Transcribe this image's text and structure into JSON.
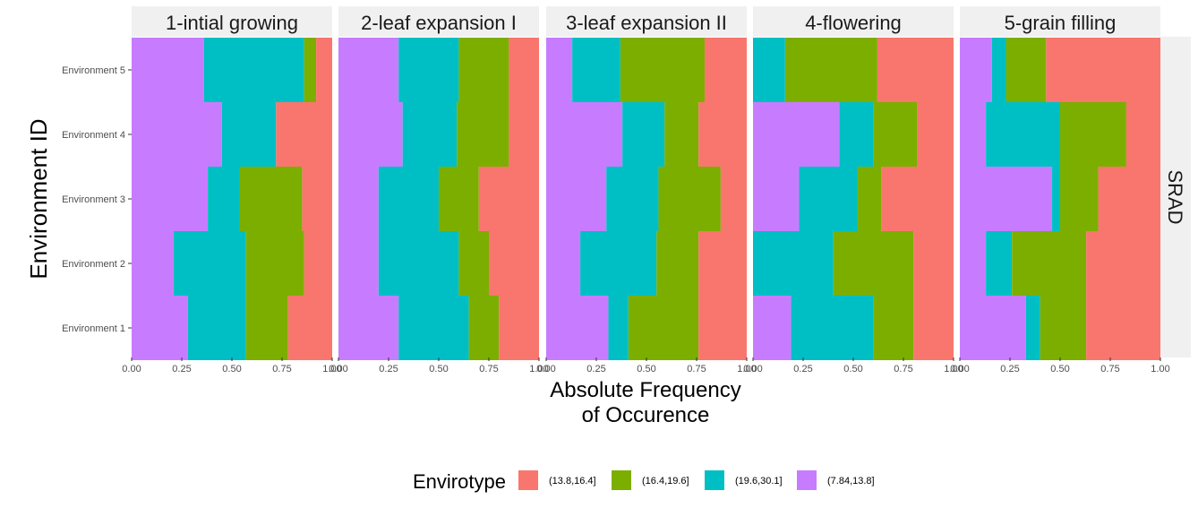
{
  "chart_data": {
    "type": "bar",
    "orientation": "horizontal",
    "stacked": true,
    "xlabel": "Absolute Frequency\nof Occurence",
    "ylabel": "Environment ID",
    "strip_right": "SRAD",
    "xlim": [
      0,
      1
    ],
    "x_ticks": [
      "0.00",
      "0.25",
      "0.50",
      "0.75",
      "1.00"
    ],
    "categories": [
      "Environment 1",
      "Environment 2",
      "Environment 3",
      "Environment 4",
      "Environment 5"
    ],
    "legend": {
      "title": "Envirotype",
      "position": "bottom",
      "entries": [
        {
          "label": "(13.8,16.4]",
          "color": "#F8766D"
        },
        {
          "label": "(16.4,19.6]",
          "color": "#7CAE00"
        },
        {
          "label": "(19.6,30.1]",
          "color": "#00BFC4"
        },
        {
          "label": "(7.84,13.8]",
          "color": "#C77CFF"
        }
      ]
    },
    "stack_order_left_to_right": [
      "(7.84,13.8]",
      "(19.6,30.1]",
      "(16.4,19.6]",
      "(13.8,16.4]"
    ],
    "panels": [
      {
        "title": "1-intial growing",
        "series": [
          {
            "name": "(7.84,13.8]",
            "values": [
              0.28,
              0.21,
              0.38,
              0.45,
              0.36
            ]
          },
          {
            "name": "(19.6,30.1]",
            "values": [
              0.29,
              0.36,
              0.16,
              0.27,
              0.5
            ]
          },
          {
            "name": "(16.4,19.6]",
            "values": [
              0.21,
              0.29,
              0.31,
              0.0,
              0.06
            ]
          },
          {
            "name": "(13.8,16.4]",
            "values": [
              0.22,
              0.14,
              0.15,
              0.28,
              0.08
            ]
          }
        ]
      },
      {
        "title": "2-leaf expansion I",
        "series": [
          {
            "name": "(7.84,13.8]",
            "values": [
              0.3,
              0.2,
              0.2,
              0.32,
              0.3
            ]
          },
          {
            "name": "(19.6,30.1]",
            "values": [
              0.35,
              0.4,
              0.3,
              0.27,
              0.3
            ]
          },
          {
            "name": "(16.4,19.6]",
            "values": [
              0.15,
              0.15,
              0.2,
              0.26,
              0.25
            ]
          },
          {
            "name": "(13.8,16.4]",
            "values": [
              0.2,
              0.25,
              0.3,
              0.15,
              0.15
            ]
          }
        ]
      },
      {
        "title": "3-leaf expansion II",
        "series": [
          {
            "name": "(7.84,13.8]",
            "values": [
              0.31,
              0.17,
              0.3,
              0.38,
              0.13
            ]
          },
          {
            "name": "(19.6,30.1]",
            "values": [
              0.1,
              0.38,
              0.26,
              0.21,
              0.24
            ]
          },
          {
            "name": "(16.4,19.6]",
            "values": [
              0.35,
              0.21,
              0.31,
              0.17,
              0.42
            ]
          },
          {
            "name": "(13.8,16.4]",
            "values": [
              0.24,
              0.24,
              0.13,
              0.24,
              0.21
            ]
          }
        ]
      },
      {
        "title": "4-flowering",
        "series": [
          {
            "name": "(7.84,13.8]",
            "values": [
              0.19,
              0.0,
              0.23,
              0.43,
              0.0
            ]
          },
          {
            "name": "(19.6,30.1]",
            "values": [
              0.41,
              0.4,
              0.29,
              0.17,
              0.16
            ]
          },
          {
            "name": "(16.4,19.6]",
            "values": [
              0.2,
              0.4,
              0.12,
              0.22,
              0.46
            ]
          },
          {
            "name": "(13.8,16.4]",
            "values": [
              0.2,
              0.2,
              0.36,
              0.18,
              0.38
            ]
          }
        ]
      },
      {
        "title": "5-grain filling",
        "series": [
          {
            "name": "(7.84,13.8]",
            "values": [
              0.33,
              0.13,
              0.46,
              0.13,
              0.16
            ]
          },
          {
            "name": "(19.6,30.1]",
            "values": [
              0.07,
              0.13,
              0.04,
              0.37,
              0.07
            ]
          },
          {
            "name": "(16.4,19.6]",
            "values": [
              0.23,
              0.37,
              0.19,
              0.33,
              0.2
            ]
          },
          {
            "name": "(13.8,16.4]",
            "values": [
              0.37,
              0.37,
              0.31,
              0.17,
              0.57
            ]
          }
        ]
      }
    ]
  }
}
